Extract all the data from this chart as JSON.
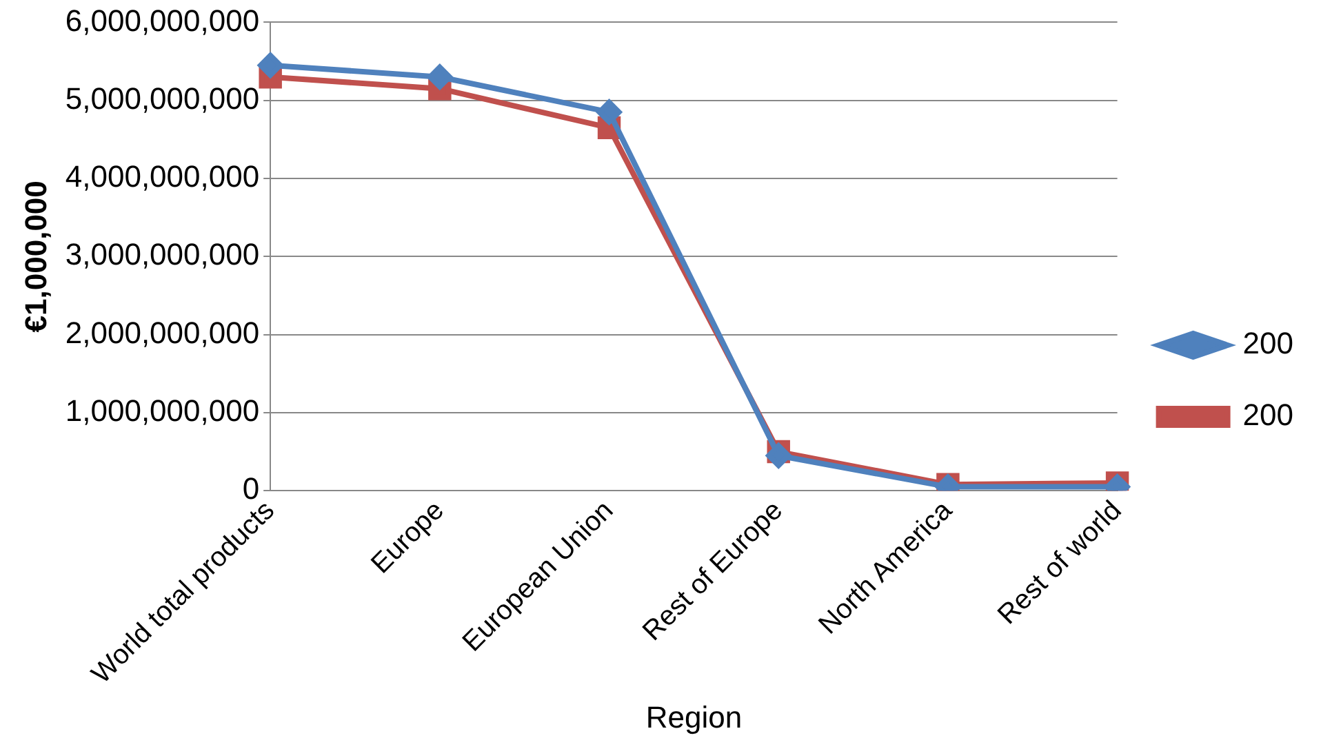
{
  "chart_data": {
    "type": "line",
    "xlabel": "Region",
    "ylabel": "€1,000,000",
    "categories": [
      "World total products",
      "Europe",
      "European Union",
      "Rest of Europe",
      "North America",
      "Rest of world"
    ],
    "series": [
      {
        "name": "200",
        "color": "#4f81bd",
        "marker": "diamond",
        "values": [
          5450000000,
          5300000000,
          4850000000,
          450000000,
          50000000,
          50000000
        ]
      },
      {
        "name": "200",
        "color": "#c0504d",
        "marker": "square",
        "values": [
          5300000000,
          5150000000,
          4650000000,
          500000000,
          80000000,
          100000000
        ]
      }
    ],
    "ylim": [
      0,
      6000000000
    ],
    "yticks": [
      0,
      {
        "value": 1000000000,
        "label": "1,000,000,000"
      },
      {
        "value": 2000000000,
        "label": "2,000,000,000"
      },
      {
        "value": 3000000000,
        "label": "3,000,000,000"
      },
      {
        "value": 4000000000,
        "label": "4,000,000,000"
      },
      {
        "value": 5000000000,
        "label": "5,000,000,000"
      },
      {
        "value": 6000000000,
        "label": "6,000,000,000"
      }
    ],
    "grid": "y",
    "legend": "right",
    "line_style": "solid"
  }
}
